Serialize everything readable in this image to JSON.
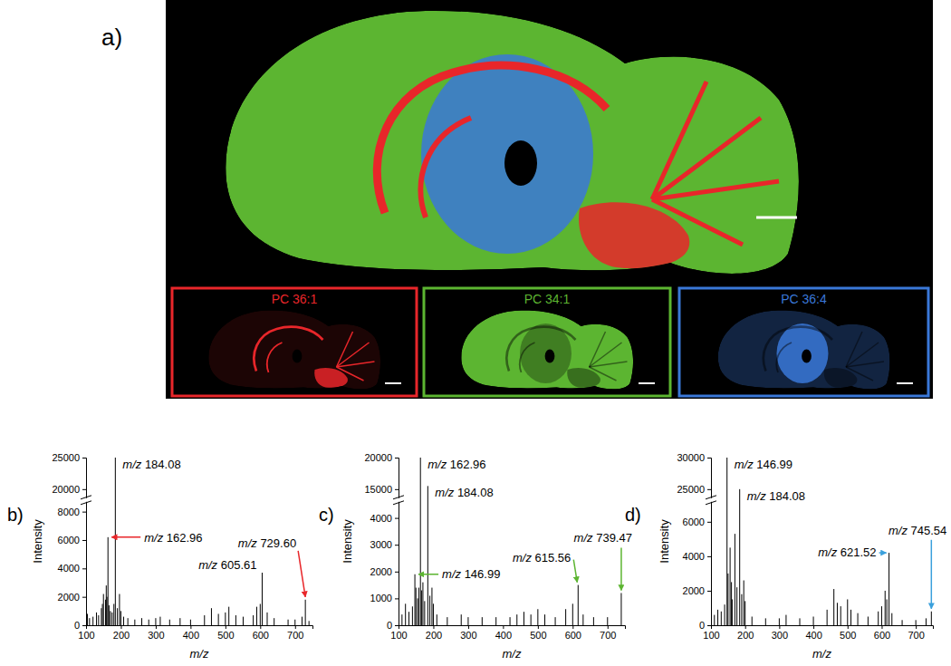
{
  "image": {
    "label": "a)",
    "channels": [
      {
        "name": "PC 36:1",
        "color": "#e8262a"
      },
      {
        "name": "PC 34:1",
        "color": "#5cb531"
      },
      {
        "name": "PC 36:4",
        "color": "#3a78d8"
      }
    ]
  },
  "chart_data": [
    {
      "type": "stick",
      "title": "b)",
      "x_label": "m/z",
      "y_label": "Intensity",
      "color": "#000000",
      "x": [
        104,
        110,
        120,
        130,
        136,
        144,
        147,
        150,
        156,
        158,
        160,
        162.96,
        166,
        170,
        175,
        180,
        184.08,
        190,
        196,
        200,
        208,
        220,
        240,
        260,
        280,
        300,
        313,
        340,
        370,
        400,
        440,
        460,
        480,
        500,
        510,
        530,
        551,
        580,
        590,
        600,
        605.61,
        620,
        640,
        680,
        700,
        720,
        729.6,
        740
      ],
      "values": [
        800,
        500,
        600,
        900,
        700,
        1200,
        1500,
        2200,
        1800,
        2800,
        2000,
        6200,
        1400,
        1000,
        900,
        1500,
        25000,
        1200,
        2200,
        1000,
        600,
        500,
        400,
        500,
        400,
        500,
        600,
        400,
        500,
        400,
        700,
        1200,
        800,
        900,
        1300,
        700,
        600,
        700,
        1300,
        1500,
        3700,
        900,
        500,
        400,
        400,
        600,
        1800,
        300
      ],
      "xlim": [
        100,
        750
      ],
      "xticks": [
        100,
        200,
        300,
        400,
        500,
        600,
        700
      ],
      "ylim": [
        0,
        25000
      ],
      "yticks": [
        0,
        2000,
        4000,
        6000,
        8000,
        20000,
        25000
      ],
      "y_break": [
        8500,
        19000
      ],
      "annotations": [
        {
          "text": "m/z 184.08",
          "x": 184.08,
          "y": 25000
        },
        {
          "text": "m/z 162.96",
          "x": 162.96,
          "y": 6200,
          "color": "#e8262a"
        },
        {
          "text": "m/z 605.61",
          "x": 605.61,
          "y": 3700
        },
        {
          "text": "m/z 729.60",
          "x": 729.6,
          "y": 1800,
          "color": "#e8262a"
        }
      ]
    },
    {
      "type": "stick",
      "title": "c)",
      "x_label": "m/z",
      "y_label": "Intensity",
      "color": "#000000",
      "x": [
        110,
        120,
        130,
        140,
        146.99,
        150,
        155,
        158,
        162.96,
        166,
        170,
        175,
        184.08,
        190,
        196,
        200,
        210,
        240,
        280,
        300,
        340,
        380,
        420,
        440,
        460,
        480,
        500,
        520,
        550,
        580,
        600,
        615.56,
        630,
        660,
        700,
        739.47
      ],
      "values": [
        400,
        800,
        500,
        700,
        1900,
        1400,
        1000,
        1400,
        20000,
        1300,
        1600,
        900,
        15500,
        1100,
        1400,
        800,
        400,
        300,
        400,
        300,
        300,
        300,
        300,
        400,
        500,
        400,
        600,
        400,
        300,
        600,
        800,
        1500,
        400,
        300,
        300,
        1200
      ],
      "xlim": [
        100,
        750
      ],
      "xticks": [
        100,
        200,
        300,
        400,
        500,
        600,
        700
      ],
      "ylim": [
        0,
        20000
      ],
      "yticks": [
        0,
        1000,
        2000,
        3000,
        4000,
        15000,
        20000
      ],
      "y_break": [
        4500,
        14000
      ],
      "annotations": [
        {
          "text": "m/z 162.96",
          "x": 162.96,
          "y": 20000
        },
        {
          "text": "m/z 184.08",
          "x": 184.08,
          "y": 15500
        },
        {
          "text": "m/z 146.99",
          "x": 146.99,
          "y": 1900,
          "color": "#5cb531"
        },
        {
          "text": "m/z 615.56",
          "x": 615.56,
          "y": 1500,
          "color": "#5cb531"
        },
        {
          "text": "m/z 739.47",
          "x": 739.47,
          "y": 1200,
          "color": "#5cb531"
        }
      ]
    },
    {
      "type": "stick",
      "title": "d)",
      "x_label": "m/z",
      "y_label": "Intensity",
      "color": "#000000",
      "x": [
        110,
        120,
        130,
        140,
        146.99,
        150,
        156,
        160,
        162,
        170,
        176,
        184.08,
        190,
        196,
        200,
        220,
        260,
        300,
        320,
        360,
        400,
        440,
        460,
        470,
        480,
        500,
        510,
        530,
        560,
        590,
        600,
        610,
        615,
        621.52,
        630,
        660,
        700,
        730,
        745.54
      ],
      "values": [
        600,
        900,
        800,
        1200,
        30000,
        3000,
        4500,
        2500,
        1500,
        5300,
        2200,
        25000,
        1800,
        2600,
        1400,
        500,
        400,
        400,
        600,
        400,
        500,
        900,
        2100,
        1300,
        1100,
        1500,
        900,
        700,
        500,
        800,
        1100,
        2000,
        1500,
        4200,
        700,
        300,
        300,
        400,
        800
      ],
      "xlim": [
        100,
        750
      ],
      "xticks": [
        100,
        200,
        300,
        400,
        500,
        600,
        700
      ],
      "ylim": [
        0,
        30000
      ],
      "yticks": [
        0,
        2000,
        4000,
        6000,
        25000,
        30000
      ],
      "y_break": [
        7000,
        24000
      ],
      "annotations": [
        {
          "text": "m/z 146.99",
          "x": 146.99,
          "y": 30000
        },
        {
          "text": "m/z 184.08",
          "x": 184.08,
          "y": 25000
        },
        {
          "text": "m/z 621.52",
          "x": 621.52,
          "y": 4200,
          "color": "#3aa0dc"
        },
        {
          "text": "m/z 745.54",
          "x": 745.54,
          "y": 800,
          "color": "#3aa0dc"
        }
      ]
    }
  ]
}
